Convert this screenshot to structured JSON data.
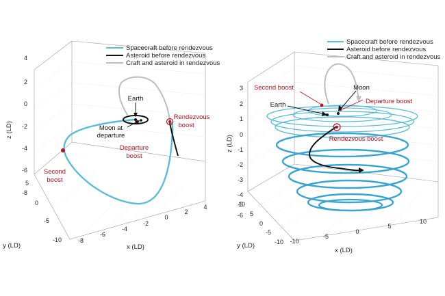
{
  "chart_data": [
    {
      "type": "line",
      "projection": "3d",
      "grid": true,
      "legend_position": "top-right",
      "xlabel": "x (LD)",
      "ylabel": "y (LD)",
      "zlabel": "z (LD)",
      "x_ticks": [
        "-8",
        "-6",
        "-4",
        "-2",
        "0",
        "2",
        "4"
      ],
      "y_ticks": [
        "5",
        "0",
        "-5",
        "-10"
      ],
      "z_ticks": [
        "4",
        "2",
        "0",
        "-2",
        "-4",
        "-6",
        "-8"
      ],
      "xlim": [
        -8,
        4
      ],
      "ylim": [
        -10,
        5
      ],
      "zlim": [
        -8,
        4
      ],
      "series": [
        {
          "name": "Spacecraft before rendezvous",
          "color": "#5bbcd6"
        },
        {
          "name": "Asteroid before rendezvous",
          "color": "#111111"
        },
        {
          "name": "Craft and asteroid in rendezvous",
          "color": "#bdbdbd"
        }
      ],
      "annotations": [
        {
          "text": "Earth",
          "kind": "body"
        },
        {
          "text": "Moon at",
          "kind": "body"
        },
        {
          "text": "departure",
          "kind": "body"
        },
        {
          "text": "Departure",
          "kind": "event"
        },
        {
          "text": "boost",
          "kind": "event"
        },
        {
          "text": "Rendezvous",
          "kind": "event"
        },
        {
          "text": "boost",
          "kind": "event"
        },
        {
          "text": "Second",
          "kind": "event"
        },
        {
          "text": "boost",
          "kind": "event"
        }
      ]
    },
    {
      "type": "line",
      "projection": "3d",
      "grid": true,
      "legend_position": "top-right",
      "xlabel": "x (LD)",
      "ylabel": "y (LD)",
      "zlabel": "z (LD)",
      "x_ticks": [
        "-10",
        "-5",
        "0",
        "5",
        "10"
      ],
      "y_ticks": [
        "10",
        "5",
        "0",
        "-5",
        "-10"
      ],
      "z_ticks": [
        "3",
        "2",
        "1",
        "0",
        "-1",
        "-2",
        "-3",
        "-4",
        "-5",
        "-6"
      ],
      "xlim": [
        -10,
        10
      ],
      "ylim": [
        -10,
        10
      ],
      "zlim": [
        -6,
        3
      ],
      "series": [
        {
          "name": "Spacecraft before rendezvous",
          "color": "#5bbcd6"
        },
        {
          "name": "Asteroid before rendezvous",
          "color": "#111111"
        },
        {
          "name": "Craft and asteroid in rendezvous",
          "color": "#bdbdbd"
        }
      ],
      "annotations": [
        {
          "text": "Second boost",
          "kind": "event"
        },
        {
          "text": "Moon",
          "kind": "body"
        },
        {
          "text": "Departure boost",
          "kind": "event"
        },
        {
          "text": "Earth",
          "kind": "body"
        },
        {
          "text": "Rendezvous boost",
          "kind": "event"
        }
      ]
    }
  ],
  "colors": {
    "spacecraft": "#5bbcd6",
    "spiral": "#3aa4cf",
    "asteroid": "#111111",
    "rendezvous": "#bdbdbd",
    "boost": "#b5121b"
  }
}
